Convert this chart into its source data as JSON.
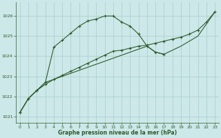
{
  "xlabel": "Graphe pression niveau de la mer (hPa)",
  "background_color": "#cce8e8",
  "grid_color": "#aacccc",
  "line_color": "#2d5a2d",
  "xlim": [
    -0.5,
    23.5
  ],
  "ylim": [
    1020.7,
    1026.7
  ],
  "yticks": [
    1021,
    1022,
    1023,
    1024,
    1025,
    1026
  ],
  "xticks": [
    0,
    1,
    2,
    3,
    4,
    5,
    6,
    7,
    8,
    9,
    10,
    11,
    12,
    13,
    14,
    15,
    16,
    17,
    18,
    19,
    20,
    21,
    22,
    23
  ],
  "series": [
    {
      "x": [
        0,
        1,
        2,
        3,
        4,
        5,
        6,
        7,
        8,
        9,
        10,
        11,
        12,
        13,
        14,
        15,
        16,
        17,
        18,
        19,
        20,
        21,
        22,
        23
      ],
      "y": [
        1021.2,
        1021.9,
        1022.3,
        1022.6,
        1022.85,
        1023.05,
        1023.25,
        1023.45,
        1023.65,
        1023.85,
        1024.05,
        1024.25,
        1024.3,
        1024.4,
        1024.5,
        1024.55,
        1024.65,
        1024.75,
        1024.85,
        1024.95,
        1025.1,
        1025.3,
        1025.7,
        1026.2
      ],
      "marker": true
    },
    {
      "x": [
        0,
        1,
        2,
        3,
        4,
        5,
        6,
        7,
        8,
        9,
        10,
        11,
        12,
        13,
        14,
        15,
        16,
        17
      ],
      "y": [
        1021.2,
        1021.9,
        1022.3,
        1022.7,
        1024.45,
        1024.8,
        1025.15,
        1025.5,
        1025.75,
        1025.85,
        1026.0,
        1026.0,
        1025.7,
        1025.5,
        1025.1,
        1024.5,
        1024.2,
        1024.1
      ],
      "marker": true
    },
    {
      "x": [
        0,
        1,
        2,
        3,
        15,
        16,
        17,
        18,
        19,
        20,
        21,
        22,
        23
      ],
      "y": [
        1021.2,
        1021.9,
        1022.3,
        1022.7,
        1024.5,
        1024.2,
        1024.1,
        1024.3,
        1024.5,
        1024.75,
        1025.0,
        1025.6,
        1026.2
      ],
      "marker": false
    }
  ]
}
